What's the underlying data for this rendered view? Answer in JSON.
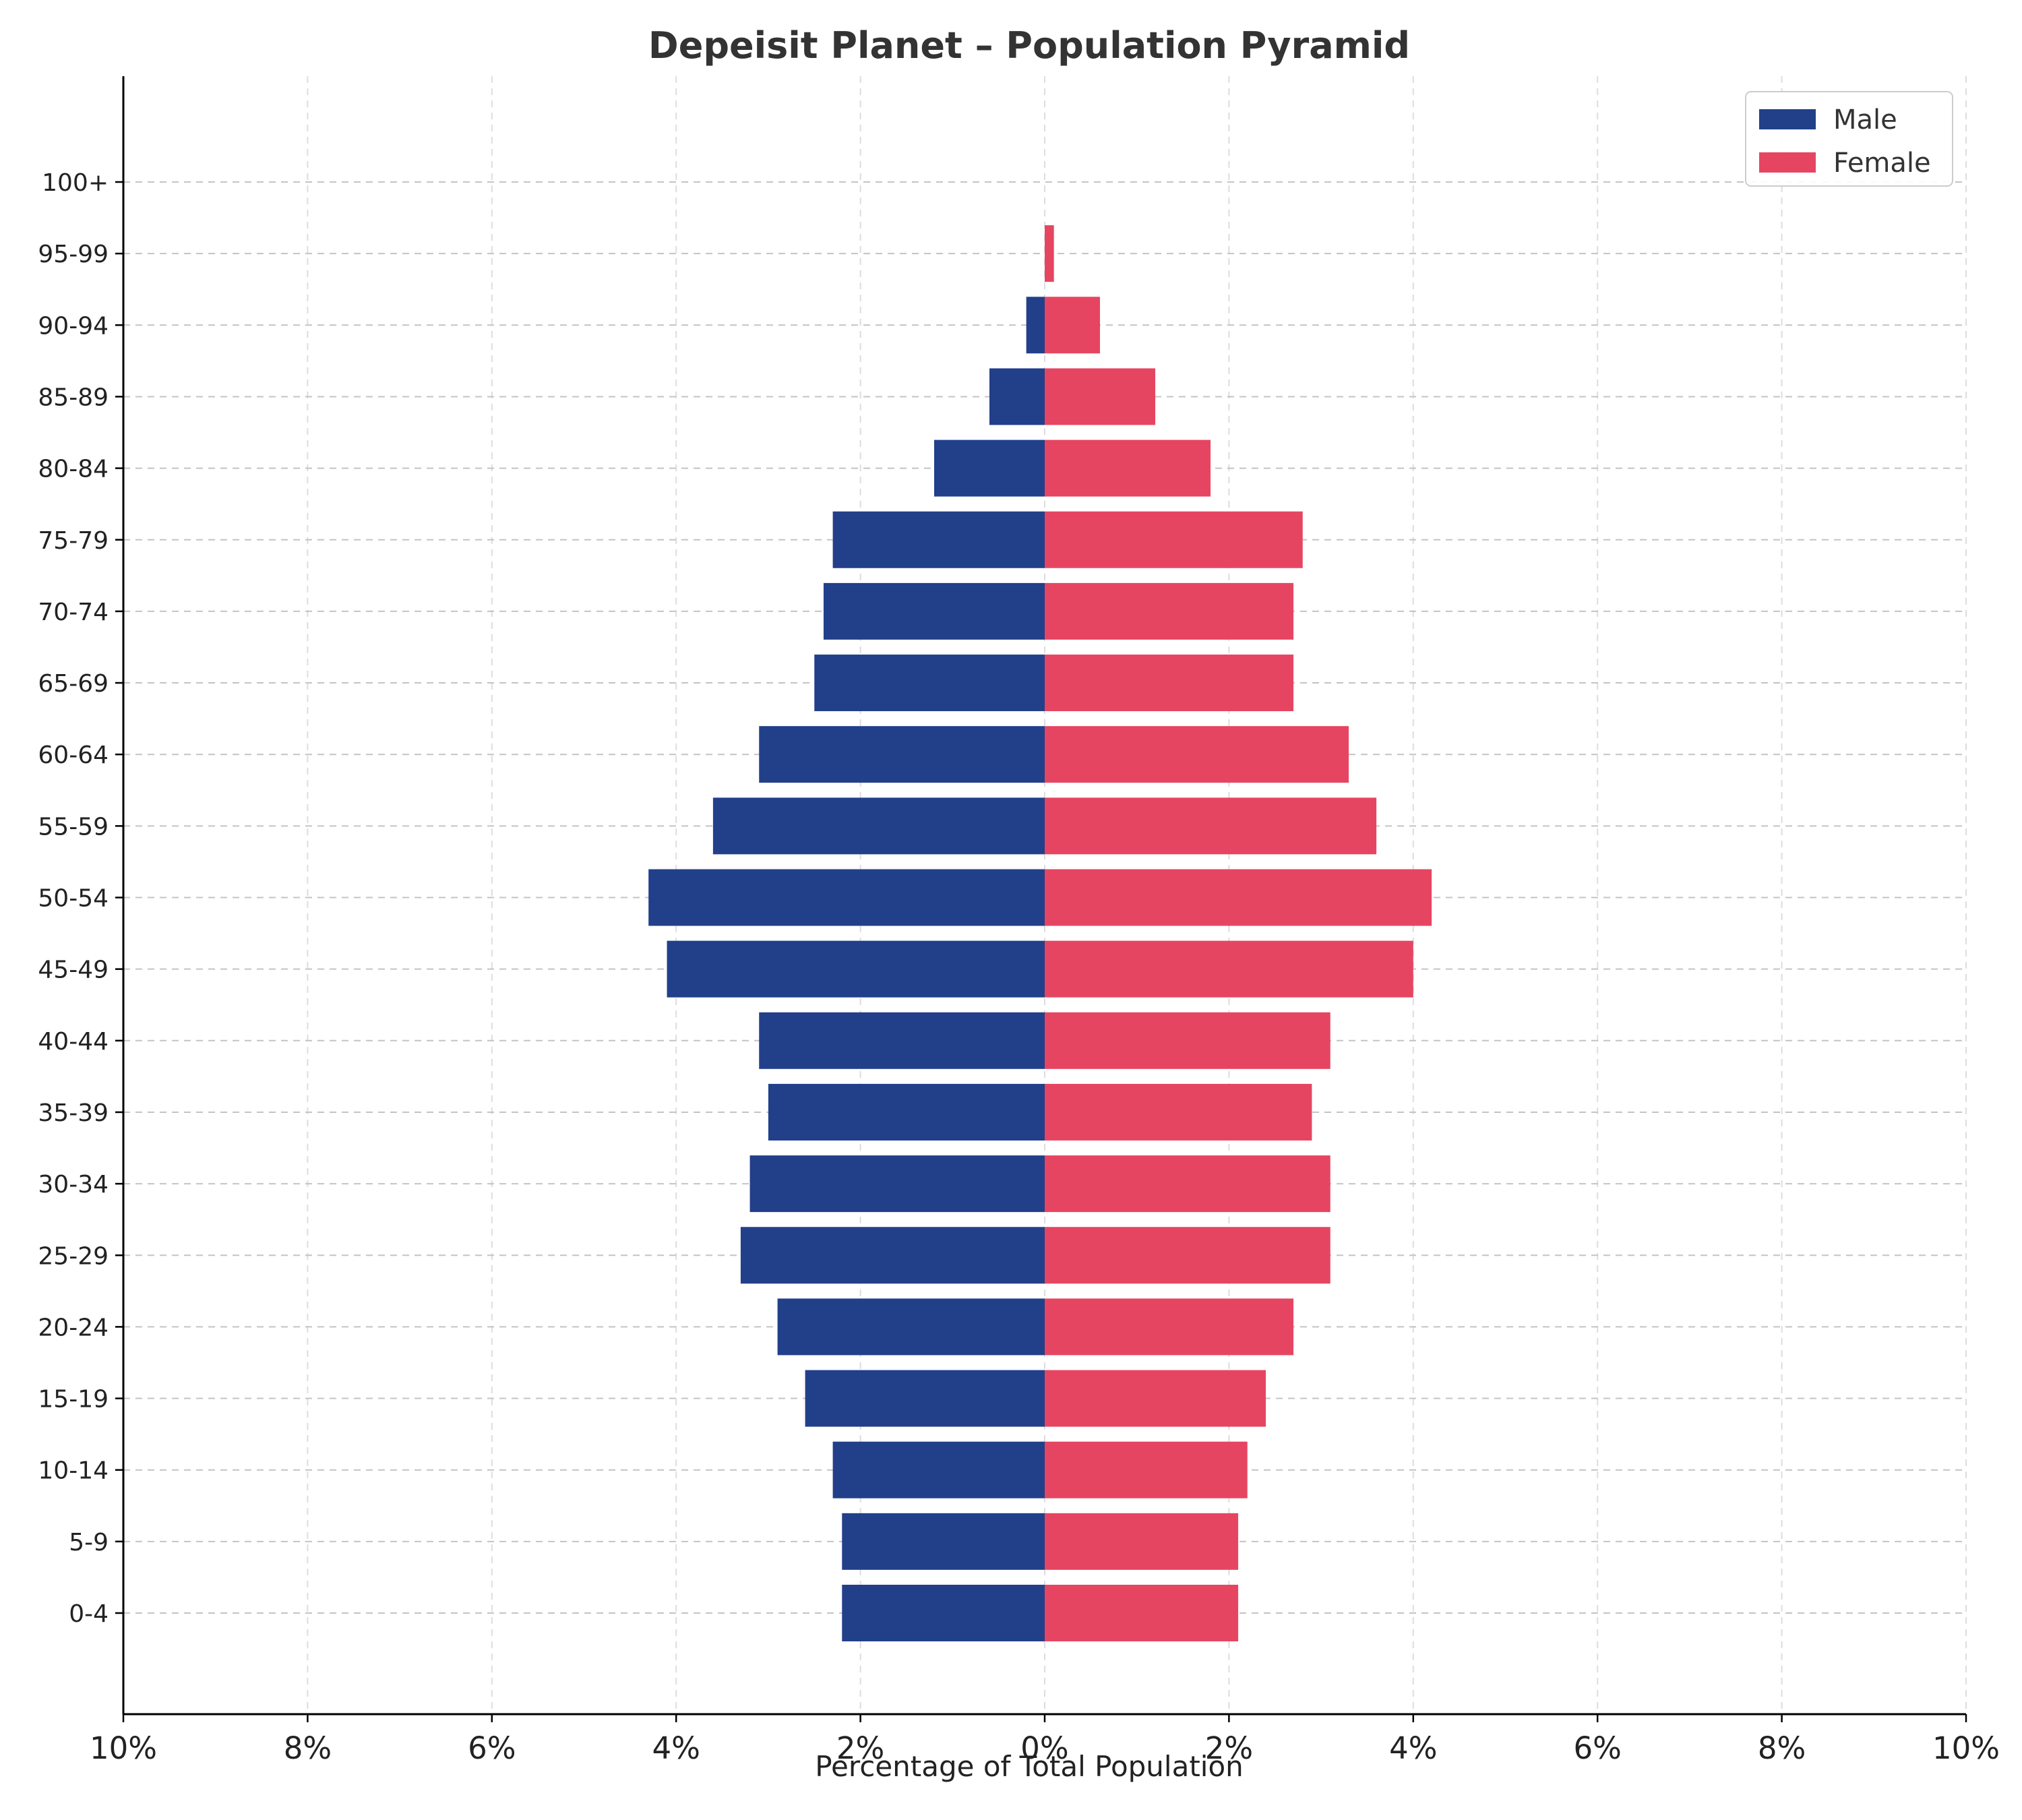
{
  "chart_data": {
    "type": "bar",
    "orientation": "horizontal",
    "title": "Depeisit Planet – Population Pyramid",
    "xlabel": "Percentage of Total Population",
    "ylabel": "",
    "xlim": [
      -10,
      10
    ],
    "x_ticks": [
      -10,
      -8,
      -6,
      -4,
      -2,
      0,
      2,
      4,
      6,
      8,
      10
    ],
    "x_tick_labels": [
      "10%",
      "8%",
      "6%",
      "4%",
      "2%",
      "0%",
      "2%",
      "4%",
      "6%",
      "8%",
      "10%"
    ],
    "categories": [
      "0-4",
      "5-9",
      "10-14",
      "15-19",
      "20-24",
      "25-29",
      "30-34",
      "35-39",
      "40-44",
      "45-49",
      "50-54",
      "55-59",
      "60-64",
      "65-69",
      "70-74",
      "75-79",
      "80-84",
      "85-89",
      "90-94",
      "95-99",
      "100+"
    ],
    "series": [
      {
        "name": "Male",
        "color": "#223F8A",
        "values": [
          2.2,
          2.2,
          2.3,
          2.6,
          2.9,
          3.3,
          3.2,
          3.0,
          3.1,
          4.1,
          4.3,
          3.6,
          3.1,
          2.5,
          2.4,
          2.3,
          1.2,
          0.6,
          0.2,
          0.0,
          0.0
        ]
      },
      {
        "name": "Female",
        "color": "#E64561",
        "values": [
          2.1,
          2.1,
          2.2,
          2.4,
          2.7,
          3.1,
          3.1,
          2.9,
          3.1,
          4.0,
          4.2,
          3.6,
          3.3,
          2.7,
          2.7,
          2.8,
          1.8,
          1.2,
          0.6,
          0.1,
          0.0
        ]
      }
    ],
    "grid": true,
    "legend_position": "top-right"
  }
}
